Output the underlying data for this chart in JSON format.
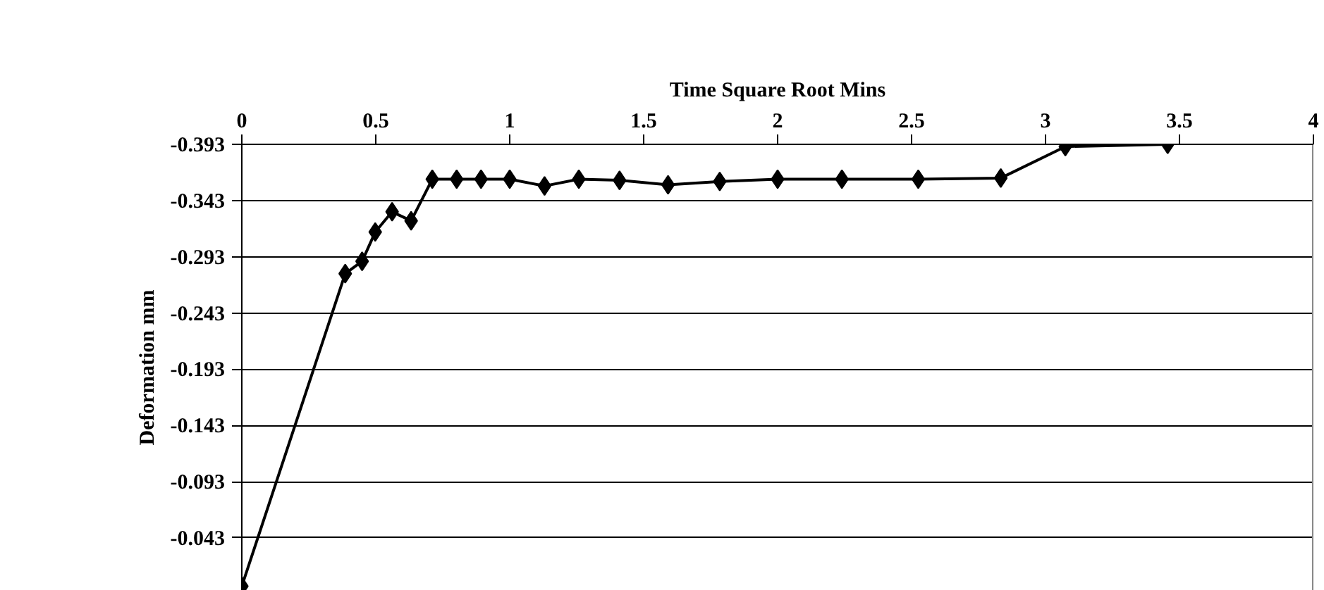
{
  "chart_data": {
    "type": "line",
    "xlabel": "Time Square Root Mins",
    "ylabel": "Deformation mm",
    "x": [
      0,
      0.386,
      0.449,
      0.498,
      0.561,
      0.632,
      0.711,
      0.802,
      0.893,
      1.0,
      1.13,
      1.258,
      1.41,
      1.591,
      1.784,
      2.0,
      2.24,
      2.525,
      2.833,
      3.074,
      3.456
    ],
    "series": [
      {
        "color": "#000000",
        "values": [
          0.0,
          -0.278,
          -0.289,
          -0.315,
          -0.333,
          -0.325,
          -0.362,
          -0.362,
          -0.362,
          -0.362,
          -0.356,
          -0.362,
          -0.361,
          -0.357,
          -0.36,
          -0.362,
          -0.362,
          -0.362,
          -0.363,
          -0.391,
          -0.393
        ]
      }
    ],
    "xlim": [
      0,
      4
    ],
    "xticks": [
      0,
      0.5,
      1,
      1.5,
      2,
      2.5,
      3,
      3.5,
      4
    ],
    "ylim": [
      0.004,
      -0.393
    ],
    "yticks": [
      -0.393,
      -0.343,
      -0.293,
      -0.243,
      -0.193,
      -0.143,
      -0.093,
      -0.043
    ],
    "grid": "y",
    "marker": "diamond",
    "line_style": "solid"
  }
}
